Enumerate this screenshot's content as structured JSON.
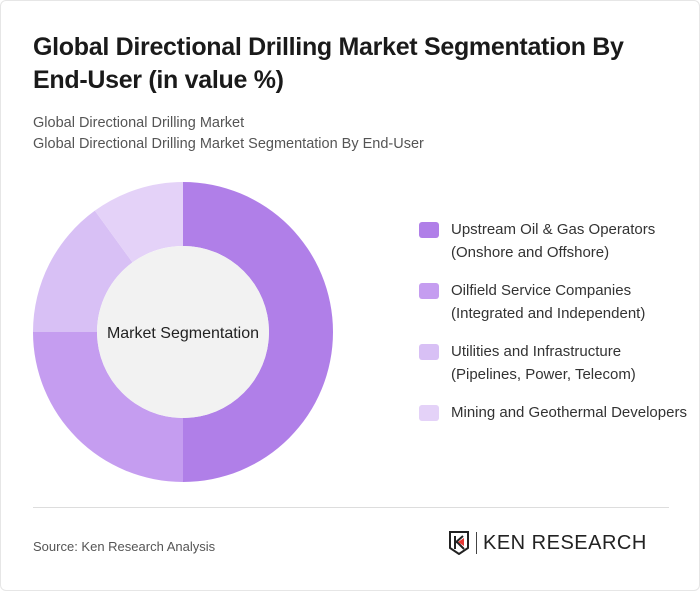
{
  "title": "Global Directional Drilling Market Segmentation By End-User (in value %)",
  "subtitle1": "Global Directional Drilling Market",
  "subtitle2": "Global Directional Drilling Market Segmentation By End-User",
  "chart_data": {
    "type": "pie",
    "variant": "donut",
    "center_label": "Market Segmentation",
    "categories": [
      "Upstream Oil & Gas Operators (Onshore and Offshore)",
      "Oilfield Service Companies (Integrated and Independent)",
      "Utilities and Infrastructure (Pipelines, Power, Telecom)",
      "Mining and Geothermal Developers"
    ],
    "values": [
      50,
      25,
      15,
      10
    ],
    "colors": [
      "#b07fe8",
      "#c59df0",
      "#d8c0f5",
      "#e4d2f8"
    ],
    "legend_position": "right"
  },
  "footer": {
    "source": "Source: Ken Research Analysis",
    "logo_text": "KEN RESEARCH"
  }
}
